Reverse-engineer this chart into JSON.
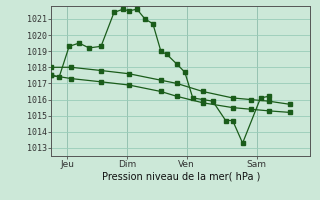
{
  "bg_color": "#cce8d8",
  "grid_color": "#99ccb8",
  "line_color": "#1a5c1a",
  "marker_color": "#1a5c1a",
  "ylabel_ticks": [
    1013,
    1014,
    1015,
    1016,
    1017,
    1018,
    1019,
    1020,
    1021
  ],
  "ylim": [
    1012.5,
    1021.8
  ],
  "xlabel": "Pression niveau de la mer( hPa )",
  "xtick_labels": [
    "Jeu",
    "Dim",
    "Ven",
    "Sam"
  ],
  "xtick_positions": [
    16,
    76,
    136,
    206
  ],
  "xlim": [
    0,
    260
  ],
  "series1_x": [
    0,
    8,
    18,
    28,
    38,
    50,
    63,
    72,
    78,
    86,
    94,
    102,
    110,
    116,
    126,
    134,
    142,
    152,
    162,
    175,
    182,
    192,
    210,
    218
  ],
  "series1_y": [
    1017.5,
    1017.4,
    1019.3,
    1019.5,
    1019.2,
    1019.3,
    1021.4,
    1021.6,
    1021.5,
    1021.6,
    1021.0,
    1020.7,
    1019.0,
    1018.8,
    1018.2,
    1017.7,
    1016.1,
    1016.0,
    1015.9,
    1014.7,
    1014.7,
    1013.3,
    1016.1,
    1016.2
  ],
  "series2_x": [
    0,
    20,
    50,
    78,
    110,
    126,
    152,
    182,
    200,
    218,
    240
  ],
  "series2_y": [
    1018.0,
    1018.0,
    1017.8,
    1017.6,
    1017.2,
    1017.0,
    1016.5,
    1016.1,
    1016.0,
    1015.9,
    1015.7
  ],
  "series3_x": [
    0,
    20,
    50,
    78,
    110,
    126,
    152,
    182,
    200,
    218,
    240
  ],
  "series3_y": [
    1017.5,
    1017.3,
    1017.1,
    1016.9,
    1016.5,
    1016.2,
    1015.8,
    1015.5,
    1015.4,
    1015.3,
    1015.2
  ]
}
